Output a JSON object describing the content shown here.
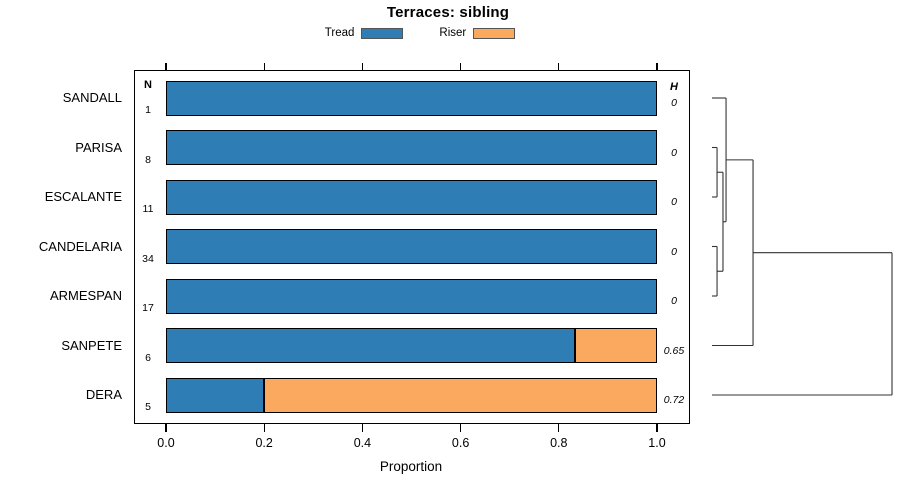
{
  "title": "Terraces: sibling",
  "legend": [
    {
      "label": "Tread",
      "color": "#2E7EB5"
    },
    {
      "label": "Riser",
      "color": "#FBA95F"
    }
  ],
  "chart_data": {
    "type": "bar",
    "orientation": "horizontal",
    "stacked": true,
    "title": "Terraces: sibling",
    "xlabel": "Proportion",
    "xlim": [
      0.0,
      1.0
    ],
    "xticks": [
      "0.0",
      "0.2",
      "0.4",
      "0.6",
      "0.8",
      "1.0"
    ],
    "xtick_values": [
      0.0,
      0.2,
      0.4,
      0.6,
      0.8,
      1.0
    ],
    "categories": [
      "SANDALL",
      "PARISA",
      "ESCALANTE",
      "CANDELARIA",
      "ARMESPAN",
      "SANPETE",
      "DERA"
    ],
    "n_header": "N",
    "n_values": [
      "1",
      "8",
      "11",
      "34",
      "17",
      "6",
      "5"
    ],
    "h_header": "H",
    "h_values": [
      "0",
      "0",
      "0",
      "0",
      "0",
      "0.65",
      "0.72"
    ],
    "series": [
      {
        "name": "Tread",
        "color": "#2E7EB5",
        "values": [
          1.0,
          1.0,
          1.0,
          1.0,
          1.0,
          0.833,
          0.2
        ]
      },
      {
        "name": "Riser",
        "color": "#FBA95F",
        "values": [
          0.0,
          0.0,
          0.0,
          0.0,
          0.0,
          0.167,
          0.8
        ]
      }
    ],
    "dendrogram": {
      "note": "right-side hierarchical clustering tree, heights as fraction of tree width",
      "merges": [
        {
          "a": "PARISA",
          "b": "ESCALANTE",
          "height": 0.028
        },
        {
          "a": "CANDELARIA",
          "b": "ARMESPAN",
          "height": 0.028
        },
        {
          "a": "m0",
          "b": "m1",
          "height": 0.061
        },
        {
          "a": "SANDALL",
          "b": "m2",
          "height": 0.078
        },
        {
          "a": "m3",
          "b": "SANPETE",
          "height": 0.228
        },
        {
          "a": "m4",
          "b": "DERA",
          "height": 1.0
        }
      ]
    }
  }
}
